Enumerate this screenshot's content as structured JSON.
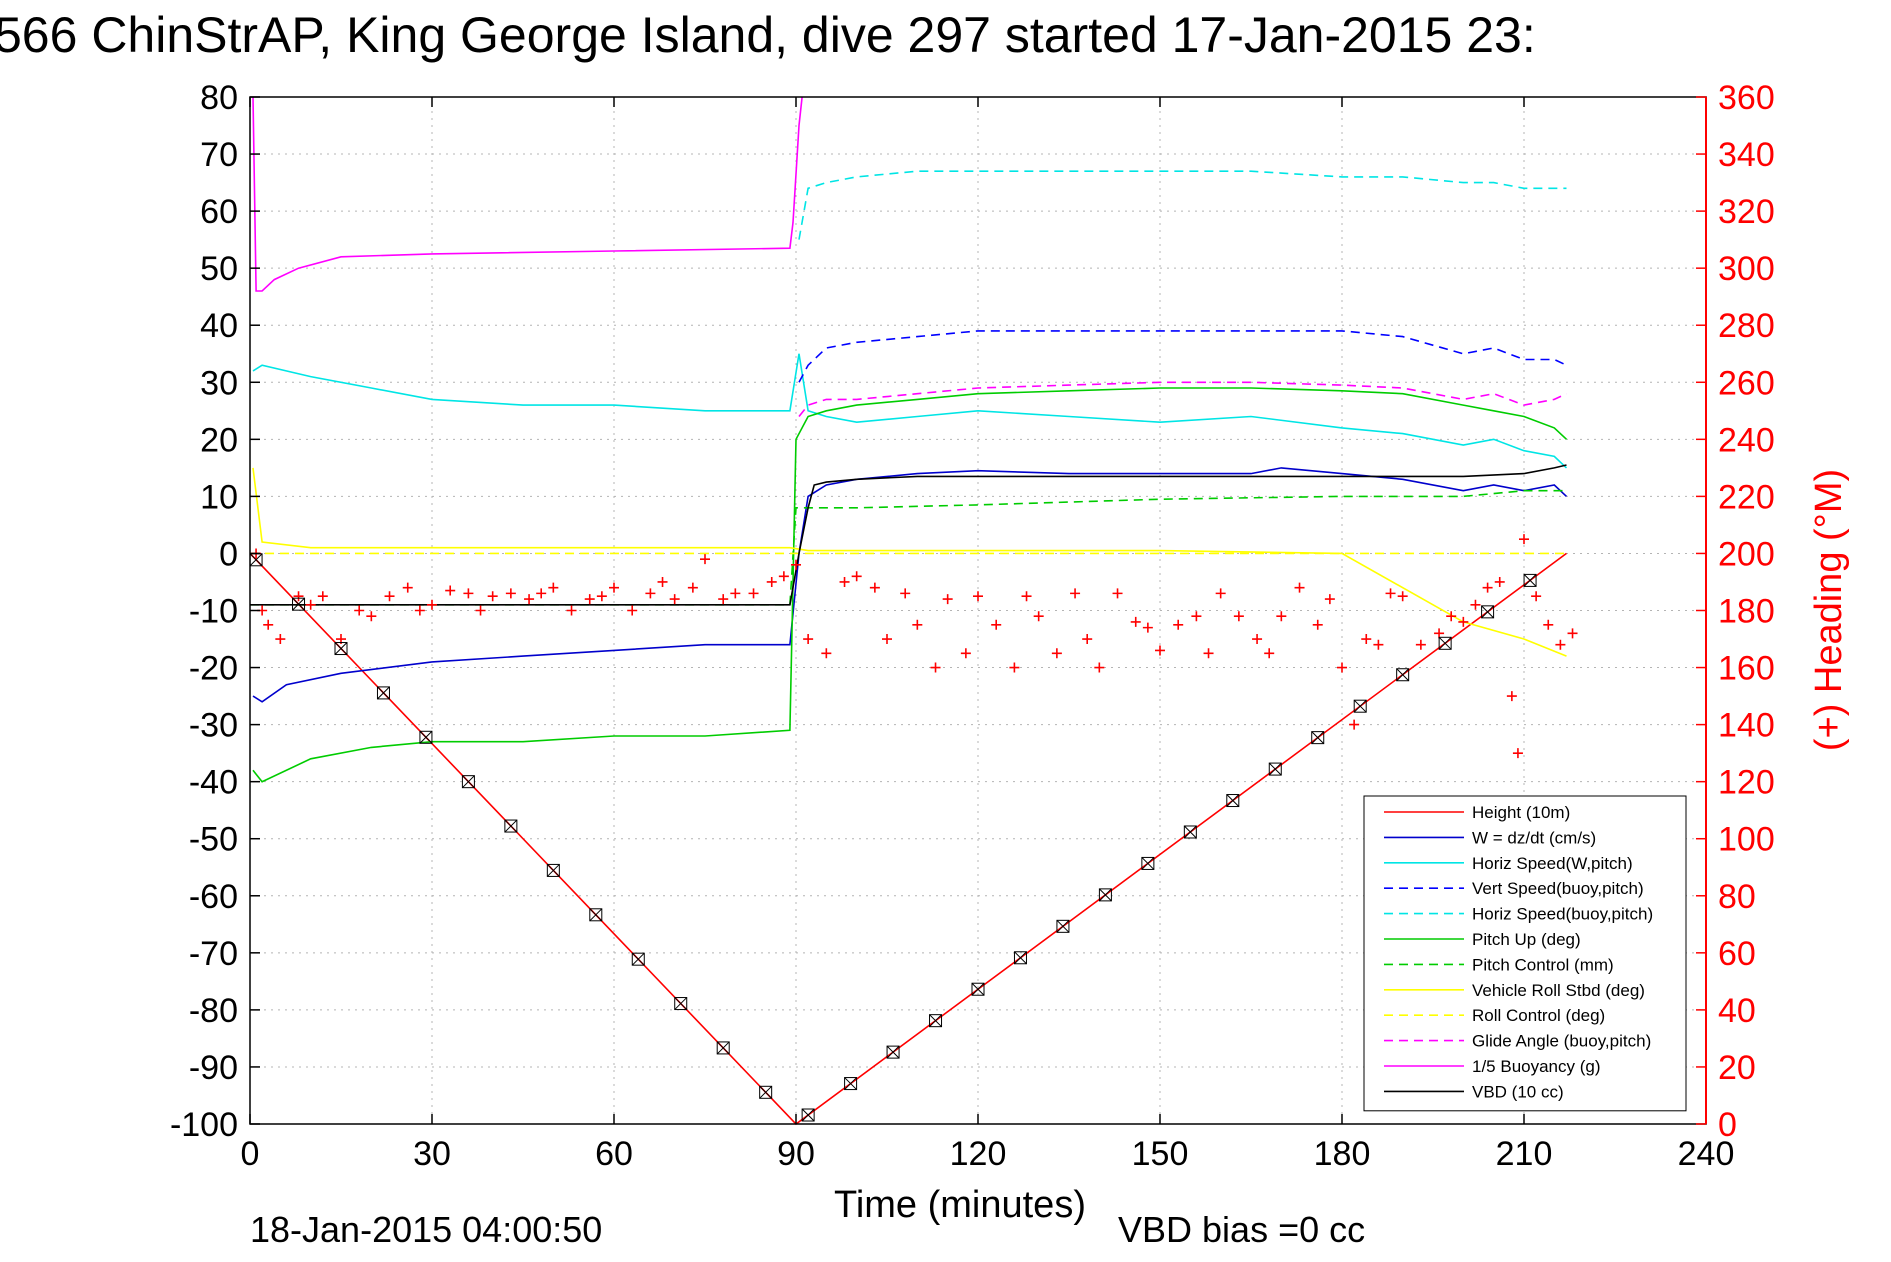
{
  "chart_data": {
    "type": "line",
    "title": "566 ChinStrAP, King George Island, dive 297 started 17-Jan-2015 23:",
    "xlabel": "Time (minutes)",
    "ylabel_right": "(+) Heading (°M)",
    "footer_left": "18-Jan-2015 04:00:50",
    "footer_right": "VBD bias =0 cc",
    "xlim": [
      0,
      240
    ],
    "ylim": [
      -100,
      80
    ],
    "ylim_right": [
      0,
      360
    ],
    "xticks": [
      "0",
      "30",
      "60",
      "90",
      "120",
      "150",
      "180",
      "210",
      "240"
    ],
    "yticks": [
      "80",
      "70",
      "60",
      "50",
      "40",
      "30",
      "20",
      "10",
      "0",
      "-10",
      "-20",
      "-30",
      "-40",
      "-50",
      "-60",
      "-70",
      "-80",
      "-90",
      "-100"
    ],
    "yticks_right": [
      "360",
      "340",
      "320",
      "300",
      "280",
      "260",
      "240",
      "220",
      "200",
      "180",
      "160",
      "140",
      "120",
      "100",
      "80",
      "60",
      "40",
      "20",
      "0"
    ],
    "grid": true,
    "legend_position": "lower-right",
    "series": [
      {
        "name": "Height (10m)",
        "color": "#ff0000",
        "style": "solid",
        "x": [
          0,
          90,
          217
        ],
        "y": [
          0,
          -100,
          0
        ]
      },
      {
        "name": "W = dz/dt (cm/s)",
        "color": "#0000cc",
        "style": "solid",
        "x": [
          0.5,
          2,
          6,
          15,
          30,
          45,
          60,
          75,
          89,
          90.5,
          92,
          95,
          100,
          110,
          120,
          135,
          150,
          165,
          170,
          180,
          190,
          200,
          205,
          210,
          215,
          217
        ],
        "y": [
          -25,
          -26,
          -23,
          -21,
          -19,
          -18,
          -17,
          -16,
          -16,
          0,
          10,
          12,
          13,
          14,
          14.5,
          14,
          14,
          14,
          15,
          14,
          13,
          11,
          12,
          11,
          12,
          10
        ]
      },
      {
        "name": "Horiz Speed(W,pitch)",
        "color": "#00e5e5",
        "style": "solid",
        "x": [
          0.5,
          2,
          10,
          20,
          30,
          45,
          60,
          75,
          89,
          90.5,
          92,
          95,
          100,
          110,
          120,
          135,
          150,
          165,
          180,
          190,
          200,
          205,
          210,
          215,
          217
        ],
        "y": [
          32,
          33,
          31,
          29,
          27,
          26,
          26,
          25,
          25,
          35,
          25,
          24,
          23,
          24,
          25,
          24,
          23,
          24,
          22,
          21,
          19,
          20,
          18,
          17,
          15
        ]
      },
      {
        "name": "Vert Speed(buoy,pitch)",
        "color": "#0000ff",
        "style": "dashed",
        "x": [
          90.5,
          92,
          95,
          100,
          110,
          120,
          135,
          150,
          165,
          180,
          190,
          200,
          205,
          210,
          215,
          217
        ],
        "y": [
          30,
          33,
          36,
          37,
          38,
          39,
          39,
          39,
          39,
          39,
          38,
          35,
          36,
          34,
          34,
          33
        ]
      },
      {
        "name": "Horiz Speed(buoy,pitch)",
        "color": "#00e5e5",
        "style": "dashed",
        "x": [
          90.5,
          92,
          95,
          100,
          110,
          120,
          135,
          150,
          165,
          180,
          190,
          200,
          205,
          210,
          215,
          217
        ],
        "y": [
          55,
          64,
          65,
          66,
          67,
          67,
          67,
          67,
          67,
          66,
          66,
          65,
          65,
          64,
          64,
          64
        ]
      },
      {
        "name": "Pitch Up (deg)",
        "color": "#00cc00",
        "style": "solid",
        "x": [
          0.5,
          2,
          10,
          20,
          30,
          45,
          60,
          75,
          89,
          90,
          92,
          95,
          100,
          110,
          120,
          135,
          150,
          165,
          180,
          190,
          200,
          205,
          210,
          215,
          217
        ],
        "y": [
          -38,
          -40,
          -36,
          -34,
          -33,
          -33,
          -32,
          -32,
          -31,
          20,
          24,
          25,
          26,
          27,
          28,
          28.5,
          29,
          29,
          28.5,
          28,
          26,
          25,
          24,
          22,
          20
        ]
      },
      {
        "name": "Pitch Control (mm)",
        "color": "#00cc00",
        "style": "dashed",
        "x": [
          0,
          89,
          90,
          95,
          100,
          120,
          150,
          180,
          200,
          210,
          217
        ],
        "y": [
          -9,
          -9,
          8,
          8,
          8,
          8.5,
          9.5,
          10,
          10,
          11,
          11
        ]
      },
      {
        "name": "Vehicle Roll Stbd (deg)",
        "color": "#ffff00",
        "style": "solid",
        "x": [
          0.5,
          2,
          10,
          30,
          60,
          89,
          92,
          120,
          150,
          180,
          200,
          210,
          217
        ],
        "y": [
          15,
          2,
          1,
          1,
          1,
          1,
          0.5,
          0.5,
          0.5,
          0,
          -12,
          -15,
          -18
        ]
      },
      {
        "name": "Roll Control (deg)",
        "color": "#ffff00",
        "style": "dashed",
        "x": [
          0,
          89,
          90,
          217
        ],
        "y": [
          0,
          0,
          0,
          0
        ]
      },
      {
        "name": "Glide Angle (buoy,pitch)",
        "color": "#ff00ff",
        "style": "dashed",
        "x": [
          90.5,
          92,
          95,
          100,
          110,
          120,
          135,
          150,
          165,
          180,
          190,
          200,
          205,
          210,
          215,
          217
        ],
        "y": [
          24,
          26,
          27,
          27,
          28,
          29,
          29.5,
          30,
          30,
          29.5,
          29,
          27,
          28,
          26,
          27,
          28
        ]
      },
      {
        "name": "1/5 Buoyancy (g)",
        "color": "#ff00ff",
        "style": "solid",
        "x": [
          0.5,
          1,
          2,
          4,
          8,
          15,
          30,
          60,
          89,
          89.5,
          90.5,
          91
        ],
        "y": [
          80,
          46,
          46,
          48,
          50,
          52,
          52.5,
          53,
          53.5,
          58,
          75,
          80
        ]
      },
      {
        "name": "VBD (10 cc)",
        "color": "#000000",
        "style": "solid",
        "x": [
          0,
          89,
          90.5,
          92,
          93,
          95,
          100,
          110,
          120,
          150,
          180,
          200,
          210,
          215,
          217
        ],
        "y": [
          -9,
          -9,
          0,
          8,
          12,
          12.5,
          13,
          13.5,
          13.5,
          13.5,
          13.5,
          13.5,
          14,
          15,
          15.5
        ]
      }
    ],
    "heading_points": {
      "name": "(+) Heading (°M)",
      "color": "#ff0000",
      "axis": "right",
      "x": [
        1,
        2,
        3,
        5,
        8,
        10,
        12,
        15,
        18,
        20,
        23,
        26,
        28,
        30,
        33,
        36,
        38,
        40,
        43,
        46,
        48,
        50,
        53,
        56,
        58,
        60,
        63,
        66,
        68,
        70,
        73,
        75,
        78,
        80,
        83,
        86,
        88,
        90,
        92,
        95,
        98,
        100,
        103,
        105,
        108,
        110,
        113,
        115,
        118,
        120,
        123,
        126,
        128,
        130,
        133,
        136,
        138,
        140,
        143,
        146,
        148,
        150,
        153,
        156,
        158,
        160,
        163,
        166,
        168,
        170,
        173,
        176,
        178,
        180,
        182,
        184,
        186,
        188,
        190,
        193,
        196,
        198,
        200,
        202,
        204,
        206,
        208,
        209,
        210,
        212,
        214,
        216,
        218
      ],
      "y": [
        200,
        180,
        175,
        170,
        185,
        182,
        185,
        170,
        180,
        178,
        185,
        188,
        180,
        182,
        187,
        186,
        180,
        185,
        186,
        184,
        186,
        188,
        180,
        184,
        185,
        188,
        180,
        186,
        190,
        184,
        188,
        198,
        184,
        186,
        186,
        190,
        192,
        196,
        170,
        165,
        190,
        192,
        188,
        170,
        186,
        175,
        160,
        184,
        165,
        185,
        175,
        160,
        185,
        178,
        165,
        186,
        170,
        160,
        186,
        176,
        174,
        166,
        175,
        178,
        165,
        186,
        178,
        170,
        165,
        178,
        188,
        175,
        184,
        160,
        140,
        170,
        168,
        186,
        185,
        168,
        172,
        178,
        176,
        182,
        188,
        190,
        150,
        130,
        205,
        185,
        175,
        168,
        172
      ]
    }
  }
}
